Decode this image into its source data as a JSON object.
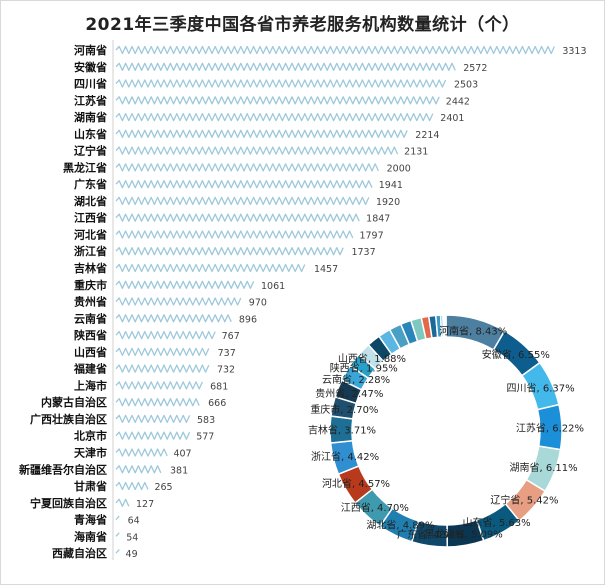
{
  "title": "2021年三季度中国各省市养老服务机构数量统计（个）",
  "chart_data": [
    {
      "type": "bar",
      "orientation": "horizontal",
      "categories": [
        "河南省",
        "安徽省",
        "四川省",
        "江苏省",
        "湖南省",
        "山东省",
        "辽宁省",
        "黑龙江省",
        "广东省",
        "湖北省",
        "江西省",
        "河北省",
        "浙江省",
        "吉林省",
        "重庆市",
        "贵州省",
        "云南省",
        "陕西省",
        "山西省",
        "福建省",
        "上海市",
        "内蒙古自治区",
        "广西壮族自治区",
        "北京市",
        "天津市",
        "新疆维吾尔自治区",
        "甘肃省",
        "宁夏回族自治区",
        "青海省",
        "海南省",
        "西藏自治区"
      ],
      "values": [
        3313,
        2572,
        2503,
        2442,
        2401,
        2214,
        2131,
        2000,
        1941,
        1920,
        1847,
        1797,
        1737,
        1457,
        1061,
        970,
        896,
        767,
        737,
        732,
        681,
        666,
        583,
        577,
        407,
        381,
        265,
        127,
        64,
        54,
        49
      ],
      "bar_color": "#9ec9dc",
      "bar_style": "zigzag",
      "xlim": [
        0,
        3400
      ],
      "data_labels": true
    },
    {
      "type": "pie",
      "variant": "donut",
      "slices": [
        {
          "label": "河南省",
          "value": 8.43,
          "text": "河南省, 8.43%",
          "color": "#4d7fa0"
        },
        {
          "label": "安徽省",
          "value": 6.55,
          "text": "安徽省, 6.55%",
          "color": "#0d5d8e"
        },
        {
          "label": "四川省",
          "value": 6.37,
          "text": "四川省, 6.37%",
          "color": "#43b8ea"
        },
        {
          "label": "江苏省",
          "value": 6.22,
          "text": "江苏省, 6.22%",
          "color": "#1b8fd8"
        },
        {
          "label": "湖南省",
          "value": 6.11,
          "text": "湖南省, 6.11%",
          "color": "#a8d8d8"
        },
        {
          "label": "辽宁省",
          "value": 5.42,
          "text": "辽宁省, 5.42%",
          "color": "#e89e82"
        },
        {
          "label": "山东省",
          "value": 5.63,
          "text": "山东省, 5.63%",
          "color": "#0a5a80"
        },
        {
          "label": "黑龙江省",
          "value": 5.09,
          "text": "黑龙江省, 5.09%",
          "color": "#0a3652"
        },
        {
          "label": "广东省",
          "value": 4.94,
          "text": "广东省, 4.94%",
          "color": "#10486a"
        },
        {
          "label": "湖北省",
          "value": 4.89,
          "text": "湖北省, 4.89%",
          "color": "#1f7fb0"
        },
        {
          "label": "江西省",
          "value": 4.7,
          "text": "江西省, 4.70%",
          "color": "#3f9ab0"
        },
        {
          "label": "河北省",
          "value": 4.57,
          "text": "河北省, 4.57%",
          "color": "#b8391c"
        },
        {
          "label": "浙江省",
          "value": 4.42,
          "text": "浙江省, 4.42%",
          "color": "#2f8fd0"
        },
        {
          "label": "吉林省",
          "value": 3.71,
          "text": "吉林省, 3.71%",
          "color": "#1d6f96"
        },
        {
          "label": "重庆市",
          "value": 2.7,
          "text": "重庆市, 2.70%",
          "color": "#1f4f6e"
        },
        {
          "label": "贵州省",
          "value": 2.47,
          "text": "贵州省, 2.47%",
          "color": "#153a52"
        },
        {
          "label": "云南省",
          "value": 2.28,
          "text": "云南省, 2.28%",
          "color": "#3aa7d8"
        },
        {
          "label": "陕西省",
          "value": 1.95,
          "text": "陕西省, 1.95%",
          "color": "#28a0c8"
        },
        {
          "label": "山西省",
          "value": 1.88,
          "text": "山西省, 1.88%",
          "color": "#c0e0ea"
        },
        {
          "label": "福建省",
          "value": 1.86,
          "text": "",
          "color": "#0c4766"
        },
        {
          "label": "上海市",
          "value": 1.73,
          "text": "",
          "color": "#5ab6e2"
        },
        {
          "label": "内蒙古自治区",
          "value": 1.7,
          "text": "",
          "color": "#4aa0c4"
        },
        {
          "label": "广西壮族自治区",
          "value": 1.48,
          "text": "",
          "color": "#2a86b8"
        },
        {
          "label": "北京市",
          "value": 1.47,
          "text": "",
          "color": "#7fc8c0"
        },
        {
          "label": "天津市",
          "value": 1.04,
          "text": "",
          "color": "#e3694a"
        },
        {
          "label": "新疆维吾尔自治区",
          "value": 0.97,
          "text": "",
          "color": "#1a6a98"
        },
        {
          "label": "甘肃省",
          "value": 0.67,
          "text": "",
          "color": "#3c98c8"
        },
        {
          "label": "宁夏回族自治区",
          "value": 0.32,
          "text": "",
          "color": "#6cc0d8"
        },
        {
          "label": "青海省",
          "value": 0.16,
          "text": "",
          "color": "#0f557a"
        },
        {
          "label": "海南省",
          "value": 0.14,
          "text": "",
          "color": "#8fcde8"
        },
        {
          "label": "西藏自治区",
          "value": 0.12,
          "text": "",
          "color": "#2b7da8"
        }
      ]
    }
  ]
}
